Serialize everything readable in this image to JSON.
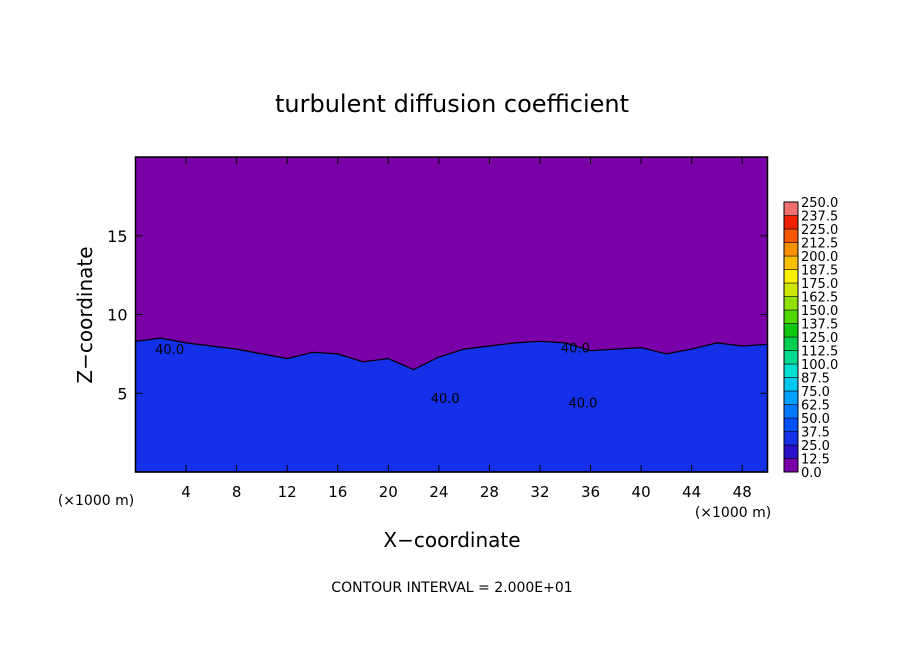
{
  "chart_data": {
    "type": "contour",
    "title": "turbulent diffusion coefficient",
    "xlabel": "X−coordinate",
    "ylabel": "Z−coordinate",
    "x_unit_labels": [
      "(×1000 m)",
      "(×1000 m)"
    ],
    "footnote": "CONTOUR INTERVAL = 2.000E+01",
    "xlim": [
      0,
      50
    ],
    "ylim": [
      0,
      20
    ],
    "xticks": [
      4,
      8,
      12,
      16,
      20,
      24,
      28,
      32,
      36,
      40,
      44,
      48
    ],
    "yticks": [
      5,
      10,
      15
    ],
    "layer_top": {
      "x": [
        0,
        2,
        4,
        6,
        8,
        10,
        12,
        14,
        16,
        18,
        20,
        22,
        24,
        26,
        28,
        30,
        32,
        34,
        36,
        38,
        40,
        42,
        44,
        46,
        48,
        50
      ],
      "values": [
        8.3,
        8.5,
        8.2,
        8.0,
        7.8,
        7.5,
        7.2,
        7.6,
        7.5,
        7.0,
        7.2,
        6.5,
        7.3,
        7.8,
        8.0,
        8.2,
        8.3,
        8.2,
        7.7,
        7.8,
        7.9,
        7.5,
        7.8,
        8.2,
        8.0,
        8.1
      ]
    },
    "contour_labels": [
      {
        "value": 40,
        "label": "40.0",
        "x": 2.7,
        "y": 7.8
      },
      {
        "value": 40,
        "label": "40.0",
        "x": 24.5,
        "y": 4.7
      },
      {
        "value": 40,
        "label": "40.0",
        "x": 34.8,
        "y": 7.9
      },
      {
        "value": 40,
        "label": "40.0",
        "x": 35.4,
        "y": 4.4
      }
    ],
    "colorbar": {
      "levels": [
        {
          "value": 0,
          "label": "0.0"
        },
        {
          "value": 12.5,
          "label": "12.5"
        },
        {
          "value": 25,
          "label": "25.0"
        },
        {
          "value": 37.5,
          "label": "37.5"
        },
        {
          "value": 50,
          "label": "50.0"
        },
        {
          "value": 62.5,
          "label": "62.5"
        },
        {
          "value": 75,
          "label": "75.0"
        },
        {
          "value": 87.5,
          "label": "87.5"
        },
        {
          "value": 100,
          "label": "100.0"
        },
        {
          "value": 112.5,
          "label": "112.5"
        },
        {
          "value": 125,
          "label": "125.0"
        },
        {
          "value": 137.5,
          "label": "137.5"
        },
        {
          "value": 150,
          "label": "150.0"
        },
        {
          "value": 162.5,
          "label": "162.5"
        },
        {
          "value": 175,
          "label": "175.0"
        },
        {
          "value": 187.5,
          "label": "187.5"
        },
        {
          "value": 200,
          "label": "200.0"
        },
        {
          "value": 212.5,
          "label": "212.5"
        },
        {
          "value": 225,
          "label": "225.0"
        },
        {
          "value": 237.5,
          "label": "237.5"
        },
        {
          "value": 250,
          "label": "250.0"
        }
      ],
      "colors": [
        "#7a00a8",
        "#2a10c8",
        "#1430e8",
        "#0050ff",
        "#0078ff",
        "#00a0ff",
        "#00c8f0",
        "#00e0d0",
        "#00d890",
        "#00d050",
        "#10c810",
        "#50d800",
        "#90e000",
        "#d0e800",
        "#f8f000",
        "#f8c000",
        "#f89000",
        "#f85800",
        "#f02000",
        "#f07070"
      ]
    }
  }
}
